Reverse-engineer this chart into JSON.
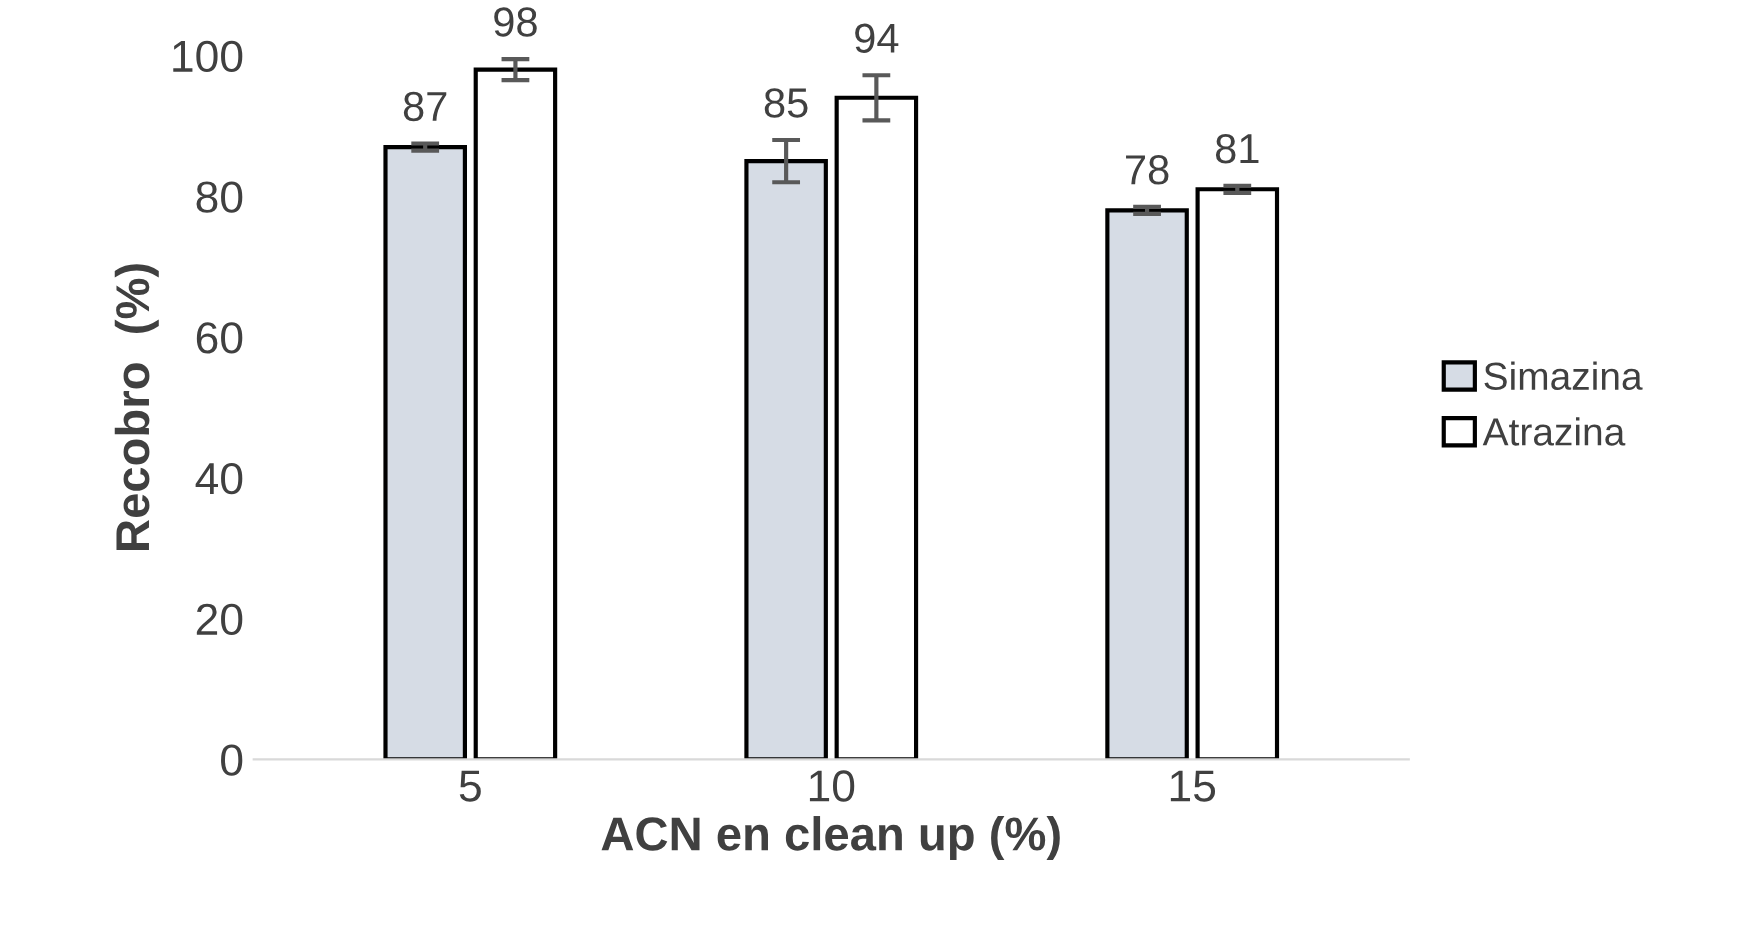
{
  "chart_data": {
    "type": "bar",
    "xlabel": "ACN en clean up (%)",
    "ylabel": "Recobro  (%)",
    "categories": [
      "5",
      "10",
      "15"
    ],
    "series": [
      {
        "name": "Simazina",
        "color": "#d6dce5",
        "values": [
          87,
          85,
          78
        ],
        "errors": [
          0.5,
          3,
          0.5
        ]
      },
      {
        "name": "Atrazina",
        "color": "#ffffff",
        "values": [
          98,
          94,
          81
        ],
        "errors": [
          1.5,
          3.2,
          0.5
        ]
      }
    ],
    "ylim": [
      0,
      100
    ],
    "yticks": [
      0,
      20,
      40,
      60,
      80,
      100
    ],
    "data_labels": true,
    "grid": false,
    "legend": "right"
  }
}
